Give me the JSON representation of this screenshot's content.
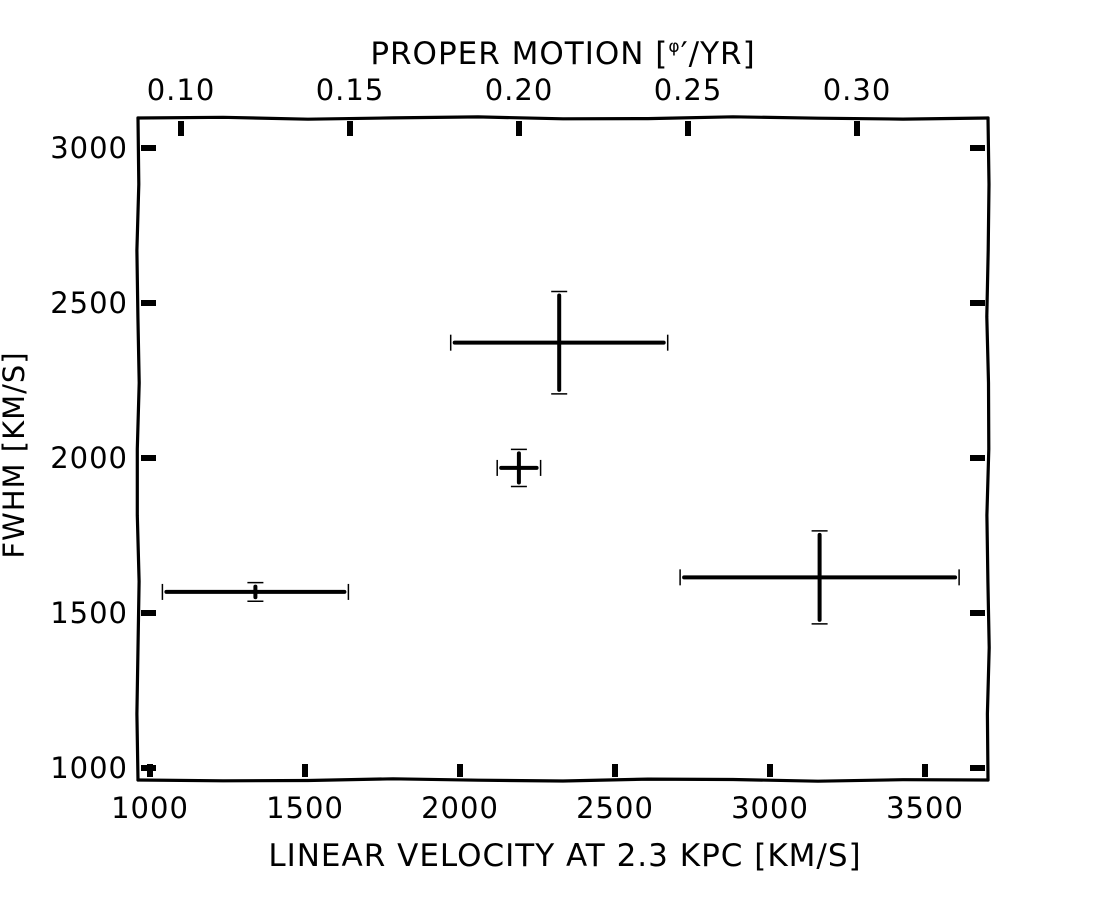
{
  "chart_data": {
    "type": "scatter",
    "title": "PROPER MOTION [φ′/YR]",
    "xlabel": "LINEAR VELOCITY AT 2.3 KPC [KM/S]",
    "ylabel": "FWHM [KM/S]",
    "top_axis_label_prefix": "PROPER MOTION [",
    "top_axis_label_symbol": "φ",
    "top_axis_label_suffix": "′/YR]",
    "xlim": [
      1000,
      3660
    ],
    "ylim": [
      1000,
      3090
    ],
    "x_ticks": [
      1000,
      1500,
      2000,
      2500,
      3000,
      3500
    ],
    "x_tick_labels": [
      "1000",
      "1500",
      "2000",
      "2500",
      "3000",
      "3500"
    ],
    "y_ticks": [
      1000,
      1500,
      2000,
      2500,
      3000
    ],
    "y_tick_labels": [
      "1000",
      "1500",
      "2000",
      "2500",
      "3000"
    ],
    "top_ticks": [
      0.1,
      0.15,
      0.2,
      0.25,
      0.3
    ],
    "top_tick_labels": [
      "0.10",
      "0.15",
      "0.20",
      "0.25",
      "0.30"
    ],
    "grid": false,
    "style": "xkcd",
    "points": [
      {
        "x": 1340,
        "y": 1568,
        "xerr": 300,
        "yerr": 30
      },
      {
        "x": 2190,
        "y": 1968,
        "xerr": 70,
        "yerr": 60
      },
      {
        "x": 2320,
        "y": 2372,
        "xerr": 350,
        "yerr": 165
      },
      {
        "x": 3160,
        "y": 1615,
        "xerr": 450,
        "yerr": 150
      }
    ],
    "color": "#000000"
  }
}
